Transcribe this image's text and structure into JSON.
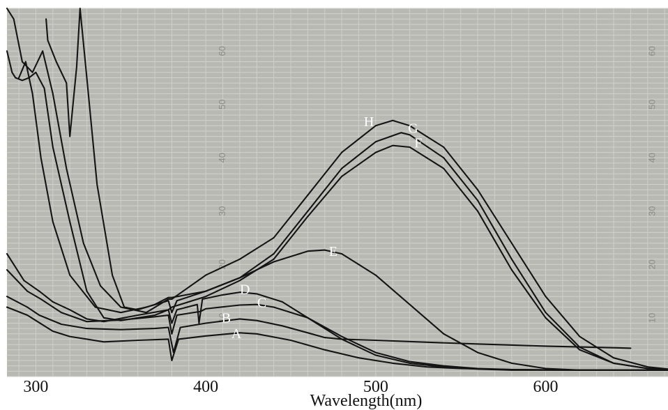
{
  "chart_data": {
    "type": "line",
    "title": "",
    "xlabel": "Wavelength(nm)",
    "ylabel": "",
    "xlim": [
      283,
      672
    ],
    "ylim": [
      -1,
      68
    ],
    "grid": true,
    "x_ticks": [
      300,
      400,
      500,
      600
    ],
    "y_ticks": [
      10,
      20,
      30,
      40,
      50,
      60
    ],
    "y_tick_columns": [
      {
        "name": "middle scale",
        "at_x": 410
      },
      {
        "name": "right scale",
        "at_x": 663
      }
    ],
    "series": [
      {
        "name": "A",
        "label_at": [
          418,
          6.8
        ],
        "points": [
          [
            283,
            12
          ],
          [
            295,
            10.5
          ],
          [
            300,
            9.5
          ],
          [
            310,
            7.5
          ],
          [
            320,
            6.5
          ],
          [
            340,
            5.5
          ],
          [
            360,
            5.8
          ],
          [
            378,
            6.0
          ],
          [
            380,
            2.0
          ],
          [
            384,
            6.0
          ],
          [
            400,
            6.6
          ],
          [
            420,
            7.2
          ],
          [
            430,
            7.0
          ],
          [
            450,
            5.8
          ],
          [
            470,
            4.0
          ],
          [
            490,
            2.5
          ],
          [
            510,
            1.5
          ],
          [
            530,
            0.8
          ],
          [
            550,
            0.5
          ],
          [
            580,
            0.3
          ],
          [
            620,
            0.2
          ],
          [
            672,
            0.2
          ]
        ]
      },
      {
        "name": "B",
        "label_at": [
          412,
          9.7
        ],
        "points": [
          [
            283,
            14
          ],
          [
            295,
            12
          ],
          [
            302,
            10.5
          ],
          [
            315,
            8.8
          ],
          [
            330,
            8.0
          ],
          [
            350,
            7.8
          ],
          [
            370,
            8.0
          ],
          [
            378,
            8.2
          ],
          [
            381,
            3.5
          ],
          [
            385,
            8.2
          ],
          [
            400,
            9.0
          ],
          [
            420,
            9.8
          ],
          [
            430,
            9.5
          ],
          [
            445,
            8.5
          ],
          [
            460,
            7.2
          ],
          [
            470,
            6.3
          ],
          [
            480,
            6.0
          ],
          [
            500,
            5.8
          ],
          [
            550,
            5.2
          ],
          [
            600,
            4.7
          ],
          [
            640,
            4.4
          ],
          [
            650,
            4.3
          ]
        ]
      },
      {
        "name": "C",
        "label_at": [
          433,
          12.6
        ],
        "points": [
          [
            283,
            19
          ],
          [
            295,
            15
          ],
          [
            303,
            13.5
          ],
          [
            315,
            11
          ],
          [
            330,
            9.3
          ],
          [
            350,
            9.6
          ],
          [
            370,
            10.2
          ],
          [
            378,
            10.5
          ],
          [
            380,
            7.0
          ],
          [
            383,
            10.5
          ],
          [
            397,
            11.2
          ],
          [
            400,
            11.7
          ],
          [
            420,
            12.4
          ],
          [
            430,
            12.5
          ],
          [
            440,
            12.0
          ],
          [
            460,
            10.0
          ],
          [
            480,
            6.5
          ],
          [
            500,
            3.5
          ],
          [
            520,
            1.8
          ],
          [
            540,
            1.0
          ],
          [
            560,
            0.5
          ],
          [
            580,
            0.3
          ],
          [
            620,
            0.2
          ],
          [
            672,
            0.2
          ]
        ]
      },
      {
        "name": "D",
        "label_at": [
          423,
          15.1
        ],
        "points": [
          [
            283,
            22
          ],
          [
            293,
            17
          ],
          [
            302,
            15.0
          ],
          [
            310,
            13
          ],
          [
            320,
            11.5
          ],
          [
            330,
            9.8
          ],
          [
            340,
            9.3
          ],
          [
            360,
            10.5
          ],
          [
            378,
            11.5
          ],
          [
            380,
            9.0
          ],
          [
            383,
            11.5
          ],
          [
            395,
            12.5
          ],
          [
            396,
            9.0
          ],
          [
            398,
            13.5
          ],
          [
            410,
            14.3
          ],
          [
            420,
            14.8
          ],
          [
            430,
            14.5
          ],
          [
            445,
            13.0
          ],
          [
            460,
            10.0
          ],
          [
            480,
            6.0
          ],
          [
            500,
            3.0
          ],
          [
            520,
            1.5
          ],
          [
            540,
            0.8
          ],
          [
            560,
            0.4
          ],
          [
            580,
            0.2
          ],
          [
            620,
            0.2
          ],
          [
            672,
            0.2
          ]
        ]
      },
      {
        "name": "E",
        "label_at": [
          475,
          22.2
        ],
        "points": [
          [
            290,
            55
          ],
          [
            294,
            58
          ],
          [
            298,
            52
          ],
          [
            303,
            40
          ],
          [
            310,
            28
          ],
          [
            320,
            18
          ],
          [
            335,
            12
          ],
          [
            350,
            11.0
          ],
          [
            365,
            12.0
          ],
          [
            378,
            13.2
          ],
          [
            380,
            11.0
          ],
          [
            383,
            13.2
          ],
          [
            400,
            15.0
          ],
          [
            420,
            17.5
          ],
          [
            440,
            20.5
          ],
          [
            460,
            22.5
          ],
          [
            470,
            22.7
          ],
          [
            480,
            22.0
          ],
          [
            500,
            18.0
          ],
          [
            520,
            12.5
          ],
          [
            540,
            7.0
          ],
          [
            560,
            3.5
          ],
          [
            580,
            1.5
          ],
          [
            600,
            0.5
          ],
          [
            620,
            0.2
          ],
          [
            672,
            0.2
          ]
        ]
      },
      {
        "name": "F",
        "label_at": [
          525,
          42.5
        ],
        "points": [
          [
            283,
            60
          ],
          [
            286,
            56
          ],
          [
            288,
            55
          ],
          [
            292,
            54.5
          ],
          [
            296,
            55
          ],
          [
            300,
            56
          ],
          [
            305,
            53
          ],
          [
            310,
            42
          ],
          [
            320,
            28
          ],
          [
            330,
            15
          ],
          [
            340,
            10.0
          ],
          [
            350,
            9.5
          ],
          [
            370,
            10.5
          ],
          [
            378,
            11.5
          ],
          [
            380,
            12.0
          ],
          [
            400,
            14.0
          ],
          [
            420,
            17.0
          ],
          [
            440,
            21.0
          ],
          [
            460,
            29.0
          ],
          [
            480,
            36.5
          ],
          [
            500,
            41.0
          ],
          [
            510,
            42.3
          ],
          [
            520,
            42.0
          ],
          [
            540,
            38.0
          ],
          [
            560,
            30.0
          ],
          [
            580,
            19.0
          ],
          [
            600,
            10.0
          ],
          [
            620,
            4.0
          ],
          [
            640,
            1.5
          ],
          [
            660,
            0.5
          ],
          [
            672,
            0.3
          ]
        ]
      },
      {
        "name": "G",
        "label_at": [
          522,
          45.3
        ],
        "points": [
          [
            306,
            66
          ],
          [
            307,
            62
          ],
          [
            312,
            58
          ],
          [
            318,
            54
          ],
          [
            320,
            44
          ],
          [
            324,
            57
          ],
          [
            326,
            70
          ],
          [
            330,
            55
          ],
          [
            336,
            35
          ],
          [
            345,
            18
          ],
          [
            352,
            12
          ],
          [
            360,
            11.5
          ],
          [
            370,
            12.5
          ],
          [
            378,
            13.8
          ],
          [
            380,
            13.8
          ],
          [
            400,
            15.0
          ],
          [
            420,
            17.5
          ],
          [
            440,
            22.0
          ],
          [
            460,
            30.0
          ],
          [
            480,
            38.0
          ],
          [
            500,
            43.0
          ],
          [
            515,
            44.7
          ],
          [
            520,
            44.3
          ],
          [
            540,
            40.0
          ],
          [
            560,
            32.0
          ],
          [
            580,
            21.0
          ],
          [
            600,
            11.0
          ],
          [
            620,
            4.5
          ],
          [
            640,
            1.5
          ],
          [
            660,
            0.5
          ],
          [
            672,
            0.3
          ]
        ]
      },
      {
        "name": "H",
        "label_at": [
          496,
          46.5
        ],
        "points": [
          [
            283,
            72
          ],
          [
            287,
            66
          ],
          [
            292,
            58
          ],
          [
            298,
            56
          ],
          [
            304,
            60
          ],
          [
            310,
            52
          ],
          [
            318,
            38
          ],
          [
            328,
            24
          ],
          [
            338,
            16
          ],
          [
            350,
            12.0
          ],
          [
            365,
            11.0
          ],
          [
            378,
            13.5
          ],
          [
            380,
            13.5
          ],
          [
            400,
            18.0
          ],
          [
            420,
            21.0
          ],
          [
            440,
            25.0
          ],
          [
            460,
            33.0
          ],
          [
            480,
            41.0
          ],
          [
            500,
            46.0
          ],
          [
            510,
            47.0
          ],
          [
            520,
            46.0
          ],
          [
            540,
            42.0
          ],
          [
            560,
            34.0
          ],
          [
            580,
            24.0
          ],
          [
            600,
            14.0
          ],
          [
            620,
            6.5
          ],
          [
            640,
            2.5
          ],
          [
            660,
            0.8
          ],
          [
            672,
            0.4
          ]
        ]
      }
    ]
  }
}
